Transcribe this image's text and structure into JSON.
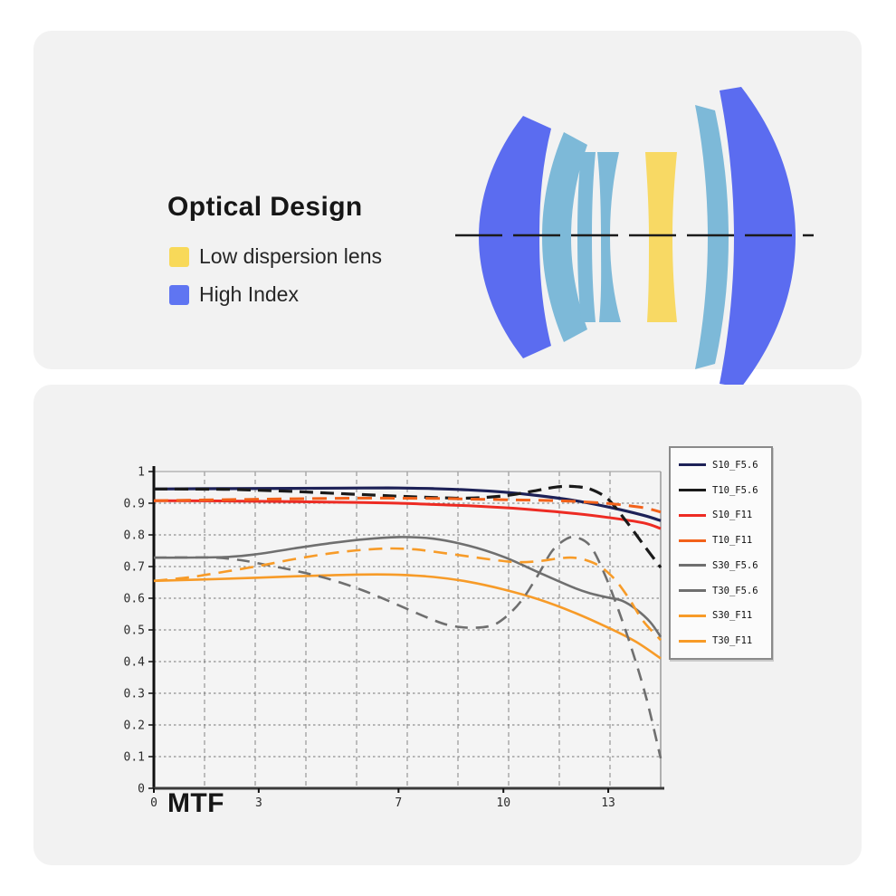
{
  "page": {
    "background": "#ffffff",
    "panel_background": "#f2f2f2"
  },
  "optical": {
    "title": "Optical Design",
    "legend": [
      {
        "label": "Low dispersion lens",
        "color": "#f8d959"
      },
      {
        "label": "High Index",
        "color": "#5f75f2"
      }
    ],
    "lens_colors": {
      "high_index": "#5b6cf0",
      "normal_glass": "#7db9d8",
      "low_dispersion": "#f8d964",
      "axis": "#1c1c1c"
    }
  },
  "mtf": {
    "title": "MTF"
  },
  "chart_data": {
    "type": "line",
    "title": "MTF",
    "xlabel": "",
    "ylabel": "",
    "xlim": [
      0,
      14.5
    ],
    "ylim": [
      0,
      1
    ],
    "grid": true,
    "legend_position": "right",
    "x_ticks": {
      "values": [
        0,
        3,
        7,
        10,
        13
      ],
      "labels": [
        "0",
        "3",
        "7",
        "10",
        "13"
      ]
    },
    "y_ticks": {
      "values": [
        1,
        0.9,
        0.8,
        0.7,
        0.6,
        0.5,
        0.4,
        0.3,
        0.2,
        0.1,
        0
      ],
      "labels": [
        "1",
        "0.9",
        "0.8",
        "0.7",
        "0.6",
        "0.5",
        "0.4",
        "0.3",
        "0.2",
        "0.1",
        "0"
      ]
    },
    "series": [
      {
        "name": "S10_F5.6",
        "color": "#1d2157",
        "dash": "",
        "width": 3.2,
        "layer": 0,
        "points": [
          [
            0,
            0.945
          ],
          [
            2,
            0.946
          ],
          [
            4,
            0.947
          ],
          [
            6,
            0.948
          ],
          [
            7,
            0.948
          ],
          [
            8,
            0.946
          ],
          [
            9,
            0.942
          ],
          [
            10,
            0.935
          ],
          [
            11,
            0.924
          ],
          [
            12,
            0.909
          ],
          [
            13,
            0.888
          ],
          [
            14,
            0.862
          ],
          [
            14.5,
            0.845
          ]
        ]
      },
      {
        "name": "T10_F5.6",
        "color": "#1a1a1a",
        "dash": "15 8",
        "width": 3.2,
        "layer": 1,
        "points": [
          [
            0,
            0.945
          ],
          [
            2,
            0.944
          ],
          [
            3,
            0.941
          ],
          [
            4,
            0.937
          ],
          [
            5,
            0.932
          ],
          [
            6,
            0.927
          ],
          [
            7,
            0.922
          ],
          [
            8,
            0.918
          ],
          [
            9,
            0.916
          ],
          [
            10,
            0.923
          ],
          [
            10.8,
            0.937
          ],
          [
            11.5,
            0.951
          ],
          [
            12,
            0.953
          ],
          [
            12.5,
            0.944
          ],
          [
            13,
            0.912
          ],
          [
            13.5,
            0.845
          ],
          [
            14,
            0.77
          ],
          [
            14.5,
            0.697
          ]
        ]
      },
      {
        "name": "S10_F11",
        "color": "#ed2b23",
        "dash": "",
        "width": 3.0,
        "layer": 0,
        "points": [
          [
            0,
            0.908
          ],
          [
            2,
            0.907
          ],
          [
            4,
            0.905
          ],
          [
            6,
            0.902
          ],
          [
            7,
            0.9
          ],
          [
            8,
            0.896
          ],
          [
            9,
            0.892
          ],
          [
            10,
            0.886
          ],
          [
            11,
            0.878
          ],
          [
            12,
            0.868
          ],
          [
            13,
            0.855
          ],
          [
            14,
            0.838
          ],
          [
            14.5,
            0.82
          ]
        ]
      },
      {
        "name": "T10_F11",
        "color": "#f2611a",
        "dash": "16 9",
        "width": 3.0,
        "layer": 1,
        "points": [
          [
            0,
            0.908
          ],
          [
            2,
            0.911
          ],
          [
            4,
            0.914
          ],
          [
            6,
            0.916
          ],
          [
            8,
            0.915
          ],
          [
            9,
            0.913
          ],
          [
            10,
            0.911
          ],
          [
            11,
            0.909
          ],
          [
            12,
            0.906
          ],
          [
            13,
            0.899
          ],
          [
            14,
            0.886
          ],
          [
            14.5,
            0.872
          ]
        ]
      },
      {
        "name": "S30_F5.6",
        "color": "#6f6f6f",
        "dash": "",
        "width": 2.6,
        "layer": 0,
        "points": [
          [
            0,
            0.728
          ],
          [
            2,
            0.73
          ],
          [
            3,
            0.74
          ],
          [
            4,
            0.757
          ],
          [
            5,
            0.773
          ],
          [
            6,
            0.786
          ],
          [
            7,
            0.793
          ],
          [
            8,
            0.788
          ],
          [
            9,
            0.766
          ],
          [
            10,
            0.731
          ],
          [
            11,
            0.682
          ],
          [
            12,
            0.634
          ],
          [
            12.5,
            0.615
          ],
          [
            13,
            0.602
          ],
          [
            13.4,
            0.592
          ],
          [
            13.8,
            0.565
          ],
          [
            14.2,
            0.525
          ],
          [
            14.5,
            0.478
          ]
        ]
      },
      {
        "name": "T30_F5.6",
        "color": "#6f6f6f",
        "dash": "14 9",
        "width": 2.6,
        "layer": 1,
        "points": [
          [
            0,
            0.728
          ],
          [
            1,
            0.729
          ],
          [
            1.8,
            0.728
          ],
          [
            2.5,
            0.72
          ],
          [
            3,
            0.71
          ],
          [
            4,
            0.688
          ],
          [
            5,
            0.661
          ],
          [
            6,
            0.624
          ],
          [
            7,
            0.578
          ],
          [
            7.8,
            0.54
          ],
          [
            8.4,
            0.516
          ],
          [
            9,
            0.507
          ],
          [
            9.6,
            0.512
          ],
          [
            10,
            0.535
          ],
          [
            10.5,
            0.59
          ],
          [
            11,
            0.675
          ],
          [
            11.4,
            0.75
          ],
          [
            11.8,
            0.787
          ],
          [
            12.1,
            0.792
          ],
          [
            12.5,
            0.763
          ],
          [
            12.9,
            0.675
          ],
          [
            13.3,
            0.56
          ],
          [
            13.7,
            0.43
          ],
          [
            14.1,
            0.28
          ],
          [
            14.5,
            0.095
          ]
        ]
      },
      {
        "name": "S30_F11",
        "color": "#f79b28",
        "dash": "",
        "width": 2.6,
        "layer": 0,
        "points": [
          [
            0,
            0.655
          ],
          [
            2,
            0.661
          ],
          [
            4,
            0.669
          ],
          [
            6,
            0.675
          ],
          [
            7,
            0.674
          ],
          [
            8,
            0.667
          ],
          [
            9,
            0.652
          ],
          [
            10,
            0.628
          ],
          [
            11,
            0.597
          ],
          [
            12,
            0.556
          ],
          [
            13,
            0.507
          ],
          [
            13.8,
            0.462
          ],
          [
            14.5,
            0.41
          ]
        ]
      },
      {
        "name": "T30_F11",
        "color": "#f79b28",
        "dash": "15 9",
        "width": 2.6,
        "layer": 1,
        "points": [
          [
            0,
            0.655
          ],
          [
            1,
            0.666
          ],
          [
            2,
            0.683
          ],
          [
            3,
            0.702
          ],
          [
            4,
            0.723
          ],
          [
            5,
            0.741
          ],
          [
            6,
            0.753
          ],
          [
            6.8,
            0.757
          ],
          [
            7.5,
            0.754
          ],
          [
            8,
            0.747
          ],
          [
            9,
            0.732
          ],
          [
            9.8,
            0.72
          ],
          [
            10.4,
            0.714
          ],
          [
            11,
            0.717
          ],
          [
            11.6,
            0.726
          ],
          [
            12,
            0.728
          ],
          [
            12.4,
            0.719
          ],
          [
            12.8,
            0.698
          ],
          [
            13.2,
            0.658
          ],
          [
            13.6,
            0.598
          ],
          [
            14,
            0.528
          ],
          [
            14.5,
            0.468
          ]
        ]
      }
    ]
  }
}
